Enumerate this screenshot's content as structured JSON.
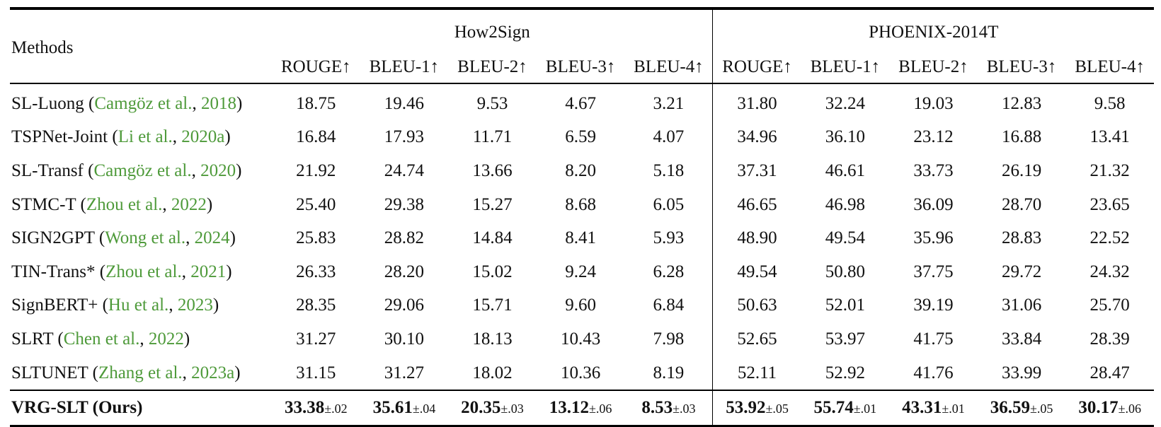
{
  "table": {
    "methods_header": "Methods",
    "groups": [
      "How2Sign",
      "PHOENIX-2014T"
    ],
    "metrics": [
      "ROUGE↑",
      "BLEU-1↑",
      "BLEU-2↑",
      "BLEU-3↑",
      "BLEU-4↑",
      "ROUGE↑",
      "BLEU-1↑",
      "BLEU-2↑",
      "BLEU-3↑",
      "BLEU-4↑"
    ],
    "rows": [
      {
        "name": "SL-Luong",
        "cite_authors": "Camgöz et al.",
        "cite_year": "2018",
        "values": [
          "18.75",
          "19.46",
          "9.53",
          "4.67",
          "3.21",
          "31.80",
          "32.24",
          "19.03",
          "12.83",
          "9.58"
        ]
      },
      {
        "name": "TSPNet-Joint",
        "cite_authors": "Li et al.",
        "cite_year": "2020a",
        "values": [
          "16.84",
          "17.93",
          "11.71",
          "6.59",
          "4.07",
          "34.96",
          "36.10",
          "23.12",
          "16.88",
          "13.41"
        ]
      },
      {
        "name": "SL-Transf",
        "cite_authors": "Camgöz et al.",
        "cite_year": "2020",
        "values": [
          "21.92",
          "24.74",
          "13.66",
          "8.20",
          "5.18",
          "37.31",
          "46.61",
          "33.73",
          "26.19",
          "21.32"
        ]
      },
      {
        "name": "STMC-T",
        "cite_authors": "Zhou et al.",
        "cite_year": "2022",
        "values": [
          "25.40",
          "29.38",
          "15.27",
          "8.68",
          "6.05",
          "46.65",
          "46.98",
          "36.09",
          "28.70",
          "23.65"
        ]
      },
      {
        "name": "SIGN2GPT",
        "cite_authors": "Wong et al.",
        "cite_year": "2024",
        "values": [
          "25.83",
          "28.82",
          "14.84",
          "8.41",
          "5.93",
          "48.90",
          "49.54",
          "35.96",
          "28.83",
          "22.52"
        ]
      },
      {
        "name": "TIN-Trans*",
        "cite_authors": "Zhou et al.",
        "cite_year": "2021",
        "values": [
          "26.33",
          "28.20",
          "15.02",
          "9.24",
          "6.28",
          "49.54",
          "50.80",
          "37.75",
          "29.72",
          "24.32"
        ]
      },
      {
        "name": "SignBERT+",
        "cite_authors": "Hu et al.",
        "cite_year": "2023",
        "values": [
          "28.35",
          "29.06",
          "15.71",
          "9.60",
          "6.84",
          "50.63",
          "52.01",
          "39.19",
          "31.06",
          "25.70"
        ]
      },
      {
        "name": "SLRT",
        "cite_authors": "Chen et al.",
        "cite_year": "2022",
        "values": [
          "31.27",
          "30.10",
          "18.13",
          "10.43",
          "7.98",
          "52.65",
          "53.97",
          "41.75",
          "33.84",
          "28.39"
        ]
      },
      {
        "name": "SLTUNET",
        "cite_authors": "Zhang et al.",
        "cite_year": "2023a",
        "values": [
          "31.15",
          "31.27",
          "18.02",
          "10.36",
          "8.19",
          "52.11",
          "52.92",
          "41.76",
          "33.99",
          "28.47"
        ]
      }
    ],
    "ours": {
      "name": "VRG-SLT (Ours)",
      "values": [
        {
          "v": "33.38",
          "s": "±.02"
        },
        {
          "v": "35.61",
          "s": "±.04"
        },
        {
          "v": "20.35",
          "s": "±.03"
        },
        {
          "v": "13.12",
          "s": "±.06"
        },
        {
          "v": "8.53",
          "s": "±.03"
        },
        {
          "v": "53.92",
          "s": "±.05"
        },
        {
          "v": "55.74",
          "s": "±.01"
        },
        {
          "v": "43.31",
          "s": "±.01"
        },
        {
          "v": "36.59",
          "s": "±.05"
        },
        {
          "v": "30.17",
          "s": "±.06"
        }
      ]
    }
  }
}
